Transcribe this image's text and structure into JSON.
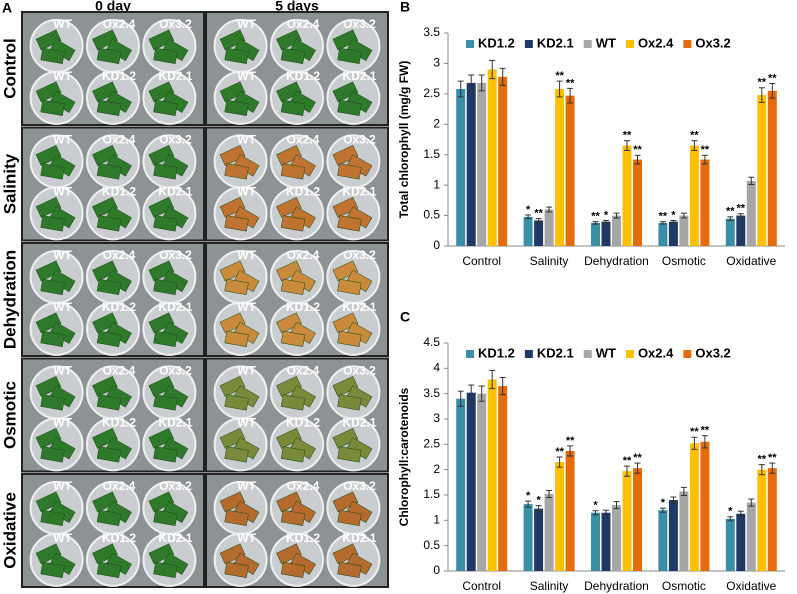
{
  "panel_a": {
    "label": "A",
    "columns": [
      "0 day",
      "5 days"
    ],
    "rows": [
      "Control",
      "Salinity",
      "Dehydration",
      "Osmotic",
      "Oxidative"
    ],
    "wells": [
      "WT",
      "Ox2.4",
      "Ox3.2",
      "WT",
      "KD1.2",
      "KD2.1"
    ]
  },
  "chart_data": [
    {
      "type": "bar",
      "panel": "B",
      "ylabel": "Total chlorophyll (mg/g FW)",
      "categories": [
        "Control",
        "Salinity",
        "Dehydration",
        "Osmotic",
        "Oxidative"
      ],
      "ylim": [
        0,
        3.5
      ],
      "yticks": [
        0,
        0.5,
        1,
        1.5,
        2,
        2.5,
        3,
        3.5
      ],
      "legend": "top",
      "series": [
        {
          "name": "KD1.2",
          "color": "#3a8fa8",
          "values": [
            2.58,
            0.48,
            0.38,
            0.38,
            0.45
          ],
          "errors": [
            0.13,
            0.03,
            0.02,
            0.02,
            0.03
          ],
          "stars": [
            null,
            "*",
            "**",
            "**",
            "**"
          ]
        },
        {
          "name": "KD2.1",
          "color": "#1f3864",
          "values": [
            2.68,
            0.42,
            0.4,
            0.4,
            0.5
          ],
          "errors": [
            0.13,
            0.03,
            0.02,
            0.02,
            0.03
          ],
          "stars": [
            null,
            "**",
            "*",
            "*",
            "**"
          ]
        },
        {
          "name": "WT",
          "color": "#a6a6a6",
          "values": [
            2.68,
            0.6,
            0.5,
            0.5,
            1.07
          ],
          "errors": [
            0.13,
            0.04,
            0.04,
            0.04,
            0.06
          ],
          "stars": [
            null,
            null,
            null,
            null,
            null
          ]
        },
        {
          "name": "Ox2.4",
          "color": "#ffc000",
          "values": [
            2.9,
            2.58,
            1.65,
            1.65,
            2.48
          ],
          "errors": [
            0.15,
            0.13,
            0.08,
            0.08,
            0.12
          ],
          "stars": [
            null,
            "**",
            "**",
            "**",
            "**"
          ]
        },
        {
          "name": "Ox3.2",
          "color": "#e46c0a",
          "values": [
            2.78,
            2.47,
            1.42,
            1.42,
            2.55
          ],
          "errors": [
            0.14,
            0.12,
            0.07,
            0.07,
            0.12
          ],
          "stars": [
            null,
            "**",
            "**",
            "**",
            "**"
          ]
        }
      ]
    },
    {
      "type": "bar",
      "panel": "C",
      "ylabel": "Chlorophyll:carotenoids",
      "categories": [
        "Control",
        "Salinity",
        "Dehydration",
        "Osmotic",
        "Oxidative"
      ],
      "ylim": [
        0,
        4.5
      ],
      "yticks": [
        0,
        0.5,
        1,
        1.5,
        2,
        2.5,
        3,
        3.5,
        4,
        4.5
      ],
      "legend": "top",
      "series": [
        {
          "name": "KD1.2",
          "color": "#3a8fa8",
          "values": [
            3.4,
            1.32,
            1.15,
            1.2,
            1.03
          ],
          "errors": [
            0.15,
            0.06,
            0.04,
            0.04,
            0.04
          ],
          "stars": [
            null,
            "*",
            "*",
            "*",
            "*"
          ]
        },
        {
          "name": "KD2.1",
          "color": "#1f3864",
          "values": [
            3.52,
            1.23,
            1.15,
            1.4,
            1.13
          ],
          "errors": [
            0.15,
            0.06,
            0.05,
            0.06,
            0.05
          ],
          "stars": [
            null,
            "*",
            null,
            null,
            null
          ]
        },
        {
          "name": "WT",
          "color": "#a6a6a6",
          "values": [
            3.5,
            1.52,
            1.3,
            1.57,
            1.35
          ],
          "errors": [
            0.15,
            0.07,
            0.07,
            0.08,
            0.07
          ],
          "stars": [
            null,
            null,
            null,
            null,
            null
          ]
        },
        {
          "name": "Ox2.4",
          "color": "#ffc000",
          "values": [
            3.78,
            2.15,
            1.97,
            2.52,
            2.0
          ],
          "errors": [
            0.18,
            0.1,
            0.1,
            0.12,
            0.1
          ],
          "stars": [
            null,
            "**",
            "**",
            "**",
            "**"
          ]
        },
        {
          "name": "Ox3.2",
          "color": "#e46c0a",
          "values": [
            3.65,
            2.37,
            2.03,
            2.55,
            2.03
          ],
          "errors": [
            0.17,
            0.1,
            0.1,
            0.12,
            0.1
          ],
          "stars": [
            null,
            "**",
            "**",
            "**",
            "**"
          ]
        }
      ]
    }
  ]
}
